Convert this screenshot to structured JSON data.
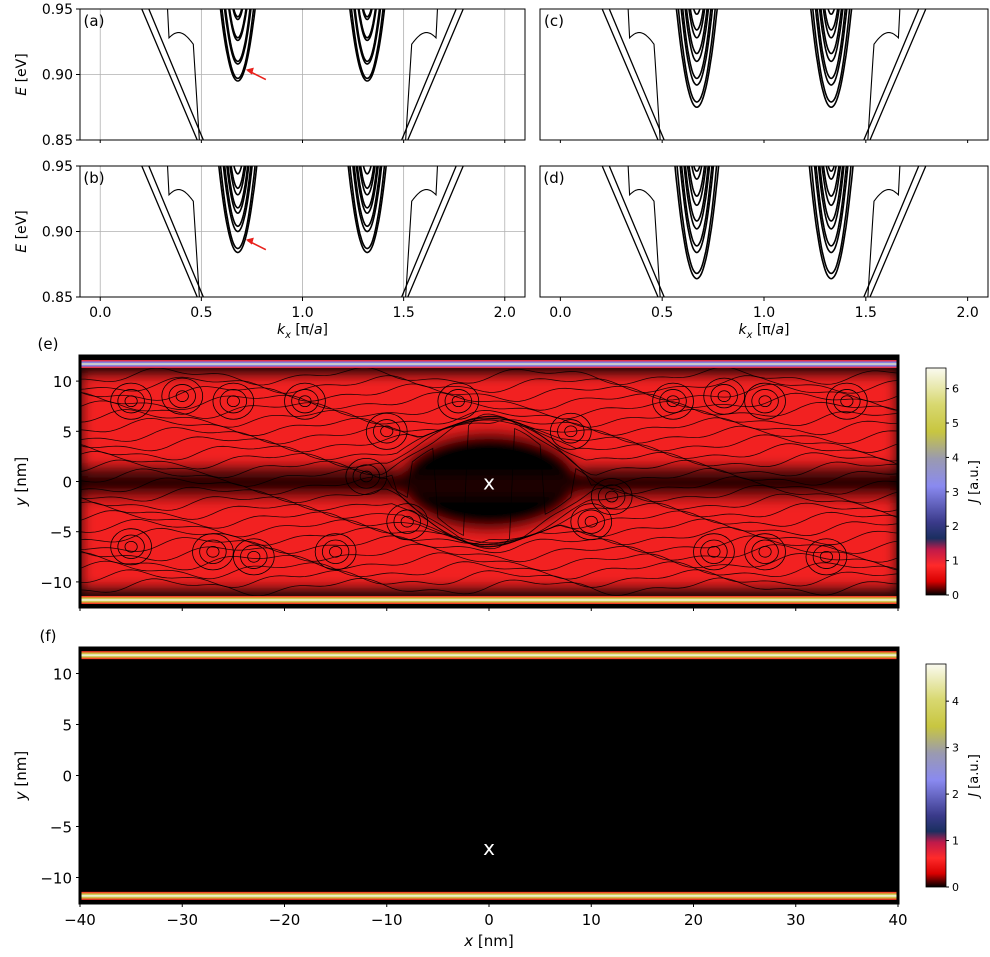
{
  "figure": {
    "band_axis": {
      "ylabel": "E [eV]",
      "xlabel": "k_x [π/a]",
      "yticks": [
        "0.85",
        "0.90",
        "0.95"
      ],
      "xticks": [
        "0.0",
        "0.5",
        "1.0",
        "1.5",
        "2.0"
      ]
    },
    "map_axis": {
      "ylabel": "y [nm]",
      "xlabel": "x [nm]",
      "yticks": [
        "10",
        "5",
        "0",
        "−5",
        "−10"
      ],
      "xticks": [
        "−40",
        "−30",
        "−20",
        "−10",
        "0",
        "10",
        "20",
        "30",
        "40"
      ]
    },
    "colorbar_label": "J [a.u.]",
    "impurity_marker": "x",
    "colors": {
      "bands": "#000000",
      "arrow": "#e8201b",
      "current": "#ff2424",
      "background": "#000000"
    }
  },
  "chart_data": [
    {
      "panel": "(a)",
      "type": "line",
      "xlim": [
        -0.1,
        2.1
      ],
      "ylim": [
        0.85,
        0.95
      ],
      "grid": true,
      "annotation": "red arrow pointing to lowest band minimum near k_x = 0.69",
      "band_minima": [
        {
          "k": 0.68,
          "E": [
            0.895,
            0.897,
            0.908,
            0.91,
            0.926,
            0.928,
            0.942,
            0.944
          ]
        },
        {
          "k": 1.32,
          "E": [
            0.895,
            0.897,
            0.908,
            0.91,
            0.926,
            0.928,
            0.942,
            0.944
          ]
        }
      ]
    },
    {
      "panel": "(b)",
      "type": "line",
      "xlim": [
        -0.1,
        2.1
      ],
      "ylim": [
        0.85,
        0.95
      ],
      "grid": true,
      "annotation": "red arrow pointing to lowest band minimum near k_x = 0.69",
      "band_minima": [
        {
          "k": 0.68,
          "E": [
            0.884,
            0.887,
            0.9,
            0.904,
            0.914,
            0.918,
            0.928,
            0.933,
            0.944
          ]
        },
        {
          "k": 1.32,
          "E": [
            0.884,
            0.887,
            0.9,
            0.904,
            0.914,
            0.918,
            0.928,
            0.933,
            0.944
          ]
        }
      ]
    },
    {
      "panel": "(c)",
      "type": "line",
      "xlim": [
        -0.1,
        2.1
      ],
      "ylim": [
        0.85,
        0.95
      ],
      "grid": false,
      "band_minima": [
        {
          "k": 0.67,
          "E": [
            0.875,
            0.879,
            0.892,
            0.897,
            0.91,
            0.916,
            0.928,
            0.934,
            0.946
          ]
        },
        {
          "k": 1.33,
          "E": [
            0.875,
            0.879,
            0.892,
            0.897,
            0.91,
            0.916,
            0.928,
            0.934,
            0.946
          ]
        }
      ]
    },
    {
      "panel": "(d)",
      "type": "line",
      "xlim": [
        -0.1,
        2.1
      ],
      "ylim": [
        0.85,
        0.95
      ],
      "grid": false,
      "band_minima": [
        {
          "k": 0.67,
          "E": [
            0.864,
            0.868,
            0.884,
            0.889,
            0.902,
            0.908,
            0.92,
            0.927,
            0.94,
            0.946
          ]
        },
        {
          "k": 1.33,
          "E": [
            0.864,
            0.868,
            0.884,
            0.889,
            0.902,
            0.908,
            0.92,
            0.927,
            0.94,
            0.946
          ]
        }
      ]
    },
    {
      "panel": "(e)",
      "type": "heatmap",
      "xlim": [
        -40,
        40
      ],
      "ylim": [
        -12.5,
        12.5
      ],
      "impurity": {
        "x": 0,
        "y": 0
      },
      "colorbar": {
        "ticks": [
          "0",
          "1",
          "2",
          "3",
          "4",
          "5",
          "6"
        ],
        "max": 6.6
      },
      "edge_current_y": [
        11.7,
        -11.8
      ]
    },
    {
      "panel": "(f)",
      "type": "heatmap",
      "xlim": [
        -40,
        40
      ],
      "ylim": [
        -12.5,
        12.5
      ],
      "impurity": {
        "x": 0,
        "y": -7
      },
      "colorbar": {
        "ticks": [
          "0",
          "1",
          "2",
          "3",
          "4"
        ],
        "max": 4.8
      },
      "edge_current_y": [
        11.8,
        -11.8
      ]
    }
  ]
}
